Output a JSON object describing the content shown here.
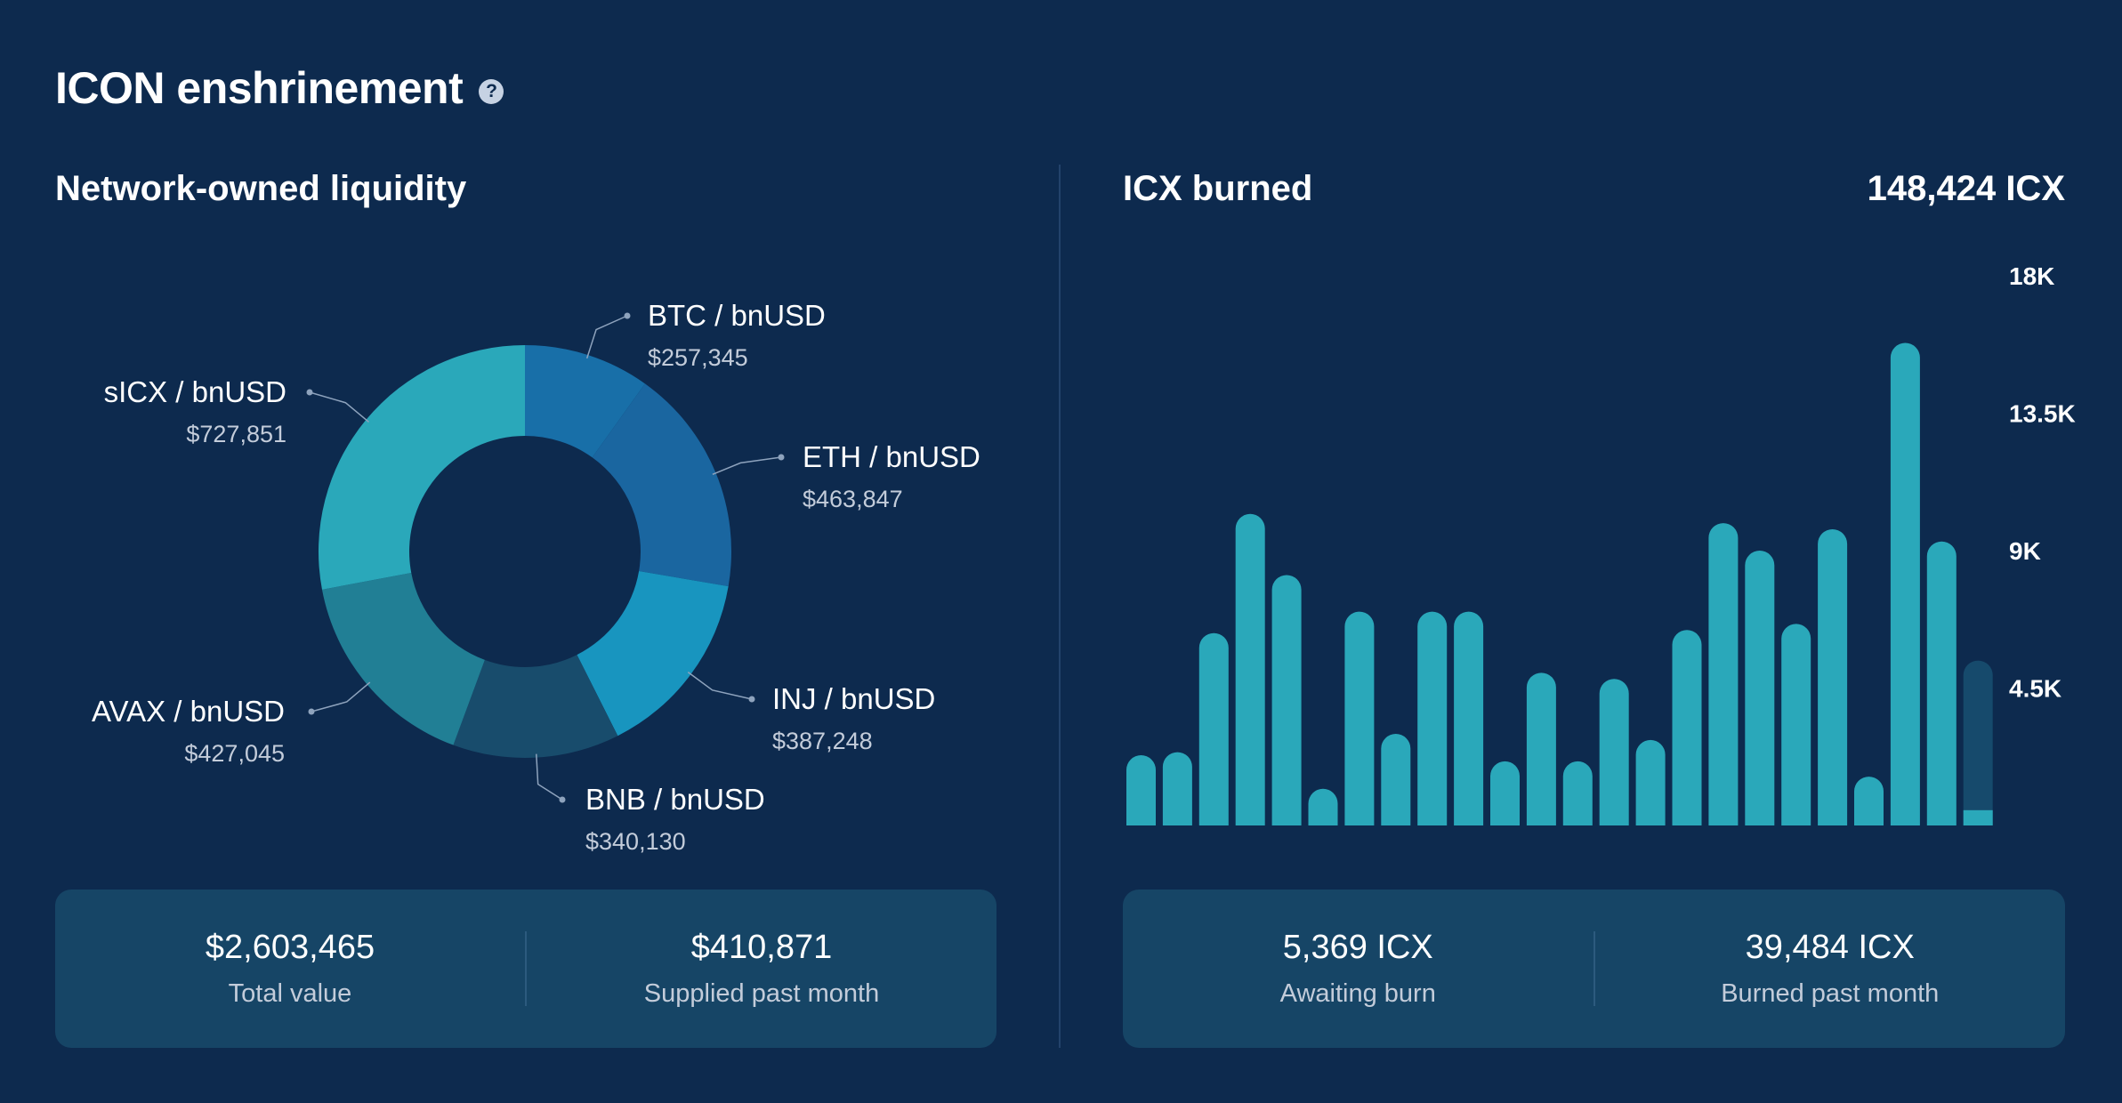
{
  "header": {
    "title": "ICON enshrinement",
    "help_icon": "question-circle-icon"
  },
  "liquidity": {
    "title": "Network-owned liquidity",
    "stats": [
      {
        "value": "$2,603,465",
        "label": "Total value"
      },
      {
        "value": "$410,871",
        "label": "Supplied past month"
      }
    ]
  },
  "burn": {
    "title": "ICX burned",
    "total": "148,424 ICX",
    "stats": [
      {
        "value": "5,369 ICX",
        "label": "Awaiting burn"
      },
      {
        "value": "39,484 ICX",
        "label": "Burned past month"
      }
    ]
  },
  "chart_data": [
    {
      "type": "pie",
      "title": "Network-owned liquidity",
      "donut": true,
      "slices": [
        {
          "name": "BTC / bnUSD",
          "label": "$257,345",
          "value": 257345,
          "color": "#186fa8"
        },
        {
          "name": "ETH / bnUSD",
          "label": "$463,847",
          "value": 463847,
          "color": "#1a66a0"
        },
        {
          "name": "INJ / bnUSD",
          "label": "$387,248",
          "value": 387248,
          "color": "#1895bf"
        },
        {
          "name": "BNB / bnUSD",
          "label": "$340,130",
          "value": 340130,
          "color": "#184c6c"
        },
        {
          "name": "AVAX / bnUSD",
          "label": "$427,045",
          "value": 427045,
          "color": "#217f95"
        },
        {
          "name": "sICX / bnUSD",
          "label": "$727,851",
          "value": 727851,
          "color": "#2aa8ba"
        }
      ]
    },
    {
      "type": "bar",
      "title": "ICX burned",
      "bar_color": "#2aa8ba",
      "pending_color": "#164a6c",
      "values": [
        2300,
        2400,
        6300,
        10200,
        8200,
        1200,
        7000,
        3000,
        7000,
        7000,
        2100,
        5000,
        2100,
        4800,
        2800,
        6400,
        9900,
        9000,
        6600,
        9700,
        1600,
        15800,
        9300,
        500
      ],
      "pending_last": 5400,
      "y_ticks": [
        "4.5K",
        "9K",
        "13.5K",
        "18K"
      ],
      "y_tick_values": [
        4500,
        9000,
        13500,
        18000
      ],
      "ylim": [
        0,
        18000
      ]
    }
  ]
}
